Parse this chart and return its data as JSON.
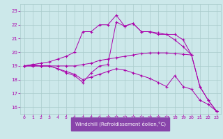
{
  "background_color": "#cce8ea",
  "grid_color": "#aacccc",
  "line_color": "#aa00aa",
  "xlim": [
    -0.5,
    23.5
  ],
  "ylim": [
    15.5,
    23.5
  ],
  "yticks": [
    16,
    17,
    18,
    19,
    20,
    21,
    22,
    23
  ],
  "xticks": [
    0,
    1,
    2,
    3,
    4,
    5,
    6,
    7,
    8,
    9,
    10,
    11,
    12,
    13,
    14,
    15,
    16,
    17,
    18,
    19,
    20,
    21,
    22,
    23
  ],
  "xlabel": "Windchill (Refroidissement éolien,°C)",
  "xlabel_color": "white",
  "xlabel_bg": "#8844aa",
  "series": [
    {
      "x": [
        0,
        1,
        2,
        3,
        4,
        5,
        6,
        7,
        8,
        9,
        10,
        11,
        12,
        13,
        14,
        15,
        16,
        17,
        18,
        19,
        20
      ],
      "y": [
        19,
        19.1,
        19,
        19,
        19,
        19,
        19,
        19.1,
        19.2,
        19.4,
        19.5,
        19.6,
        19.7,
        19.8,
        19.9,
        19.95,
        19.95,
        19.95,
        19.9,
        19.85,
        19.8
      ]
    },
    {
      "x": [
        0,
        1,
        2,
        3,
        4,
        5,
        6,
        7,
        8,
        9,
        10,
        11,
        12,
        13,
        14,
        15,
        16,
        17,
        18,
        19,
        20,
        21,
        22,
        23
      ],
      "y": [
        19,
        19,
        19,
        19,
        18.8,
        18.6,
        18.4,
        18.0,
        18.2,
        18.4,
        18.6,
        18.8,
        18.7,
        18.5,
        18.3,
        18.1,
        17.8,
        17.5,
        18.3,
        17.5,
        17.3,
        16.5,
        16.2,
        15.7
      ]
    },
    {
      "x": [
        0,
        1,
        2,
        3,
        4,
        5,
        6,
        7,
        8,
        9,
        10,
        11,
        12,
        13,
        14,
        15,
        16,
        17,
        18,
        19,
        20,
        21,
        22,
        23
      ],
      "y": [
        19,
        19.1,
        19.2,
        19.3,
        19.5,
        19.7,
        20.0,
        21.5,
        21.5,
        22.0,
        22.0,
        22.7,
        21.9,
        22.1,
        21.5,
        21.5,
        21.3,
        21.3,
        20.9,
        20.4,
        19.8,
        17.5,
        16.5,
        15.7
      ]
    },
    {
      "x": [
        0,
        1,
        2,
        3,
        4,
        5,
        6,
        7,
        8,
        9,
        10,
        11,
        12,
        13,
        14,
        15,
        16,
        17,
        18,
        19,
        20,
        21,
        22,
        23
      ],
      "y": [
        19,
        19,
        19,
        19,
        18.8,
        18.5,
        18.3,
        17.8,
        18.5,
        19.0,
        19.1,
        22.2,
        21.9,
        22.1,
        21.5,
        21.5,
        21.4,
        21.3,
        21.3,
        20.9,
        19.8,
        17.5,
        16.5,
        15.7
      ]
    }
  ]
}
